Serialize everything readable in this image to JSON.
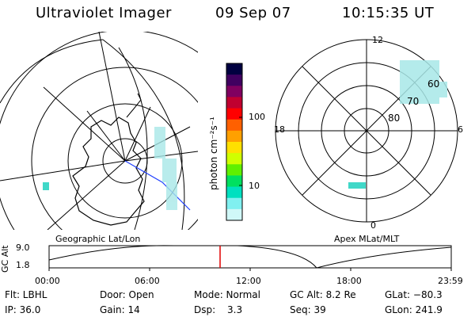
{
  "header": {
    "instrument": "Ultraviolet Imager",
    "date": "09 Sep 07",
    "time": "10:15:35 UT"
  },
  "left_panel": {
    "caption": "Geographic Lat/Lon"
  },
  "right_panel": {
    "caption": "Apex MLat/MLT",
    "mlt_labels": {
      "top": "12",
      "left": "18",
      "right": "6",
      "bottom": "0"
    },
    "lat_labels": [
      "60",
      "70",
      "80"
    ]
  },
  "colorbar": {
    "unit_label": "photon cm⁻²s⁻¹",
    "ticks": [
      "100",
      "10"
    ],
    "colors": [
      "#000040",
      "#400060",
      "#800060",
      "#c00030",
      "#ff0000",
      "#ff6000",
      "#ffa000",
      "#ffe000",
      "#d0ff00",
      "#60f000",
      "#00e060",
      "#00e0c0",
      "#80f0f0",
      "#d0f8f8"
    ]
  },
  "altitude_plot": {
    "ylabel": "GC Alt",
    "y_ticks": [
      "9.0",
      "1.8"
    ],
    "x_ticks": [
      "00:00",
      "06:00",
      "12:00",
      "18:00",
      "23:59"
    ],
    "current_marker_color": "#e00000"
  },
  "info": {
    "flt": "Flt: LBHL",
    "door": "Door: Open",
    "mode": "Mode: Normal",
    "gc_alt": "GC Alt: 8.2 Re",
    "glat": "GLat: −80.3",
    "ip": "IP: 36.0",
    "gain": "Gain: 14",
    "dsp_label": "Dsp:",
    "dsp_value": "3.3",
    "seq": "Seq: 39",
    "glon": "GLon: 241.9"
  }
}
